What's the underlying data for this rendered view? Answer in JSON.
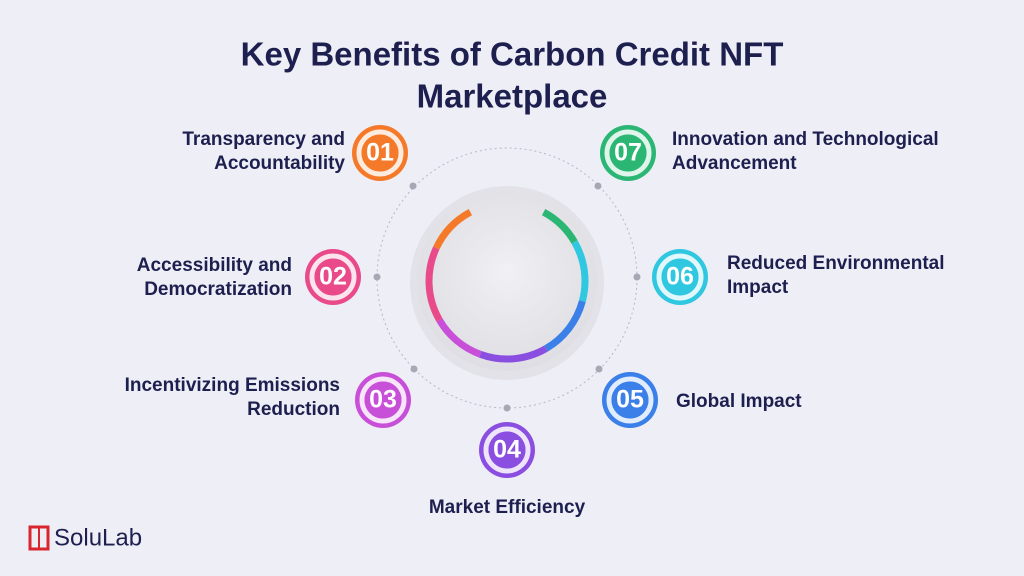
{
  "header": {
    "title_lines": [
      "Key Benefits of Carbon Credit NFT",
      "Marketplace"
    ]
  },
  "items": [
    {
      "number": "01",
      "label_lines": [
        "Transparency and",
        "Accountability"
      ]
    },
    {
      "number": "02",
      "label_lines": [
        "Accessibility and",
        "Democratization"
      ]
    },
    {
      "number": "03",
      "label_lines": [
        "Incentivizing Emissions",
        "Reduction"
      ]
    },
    {
      "number": "04",
      "label_lines": [
        "Market Efficiency"
      ]
    },
    {
      "number": "05",
      "label_lines": [
        "Global Impact"
      ]
    },
    {
      "number": "06",
      "label_lines": [
        "Reduced Environmental",
        "Impact"
      ]
    },
    {
      "number": "07",
      "label_lines": [
        "Innovation and Technological",
        "Advancement"
      ]
    }
  ],
  "brand": {
    "name": "SoluLab"
  }
}
